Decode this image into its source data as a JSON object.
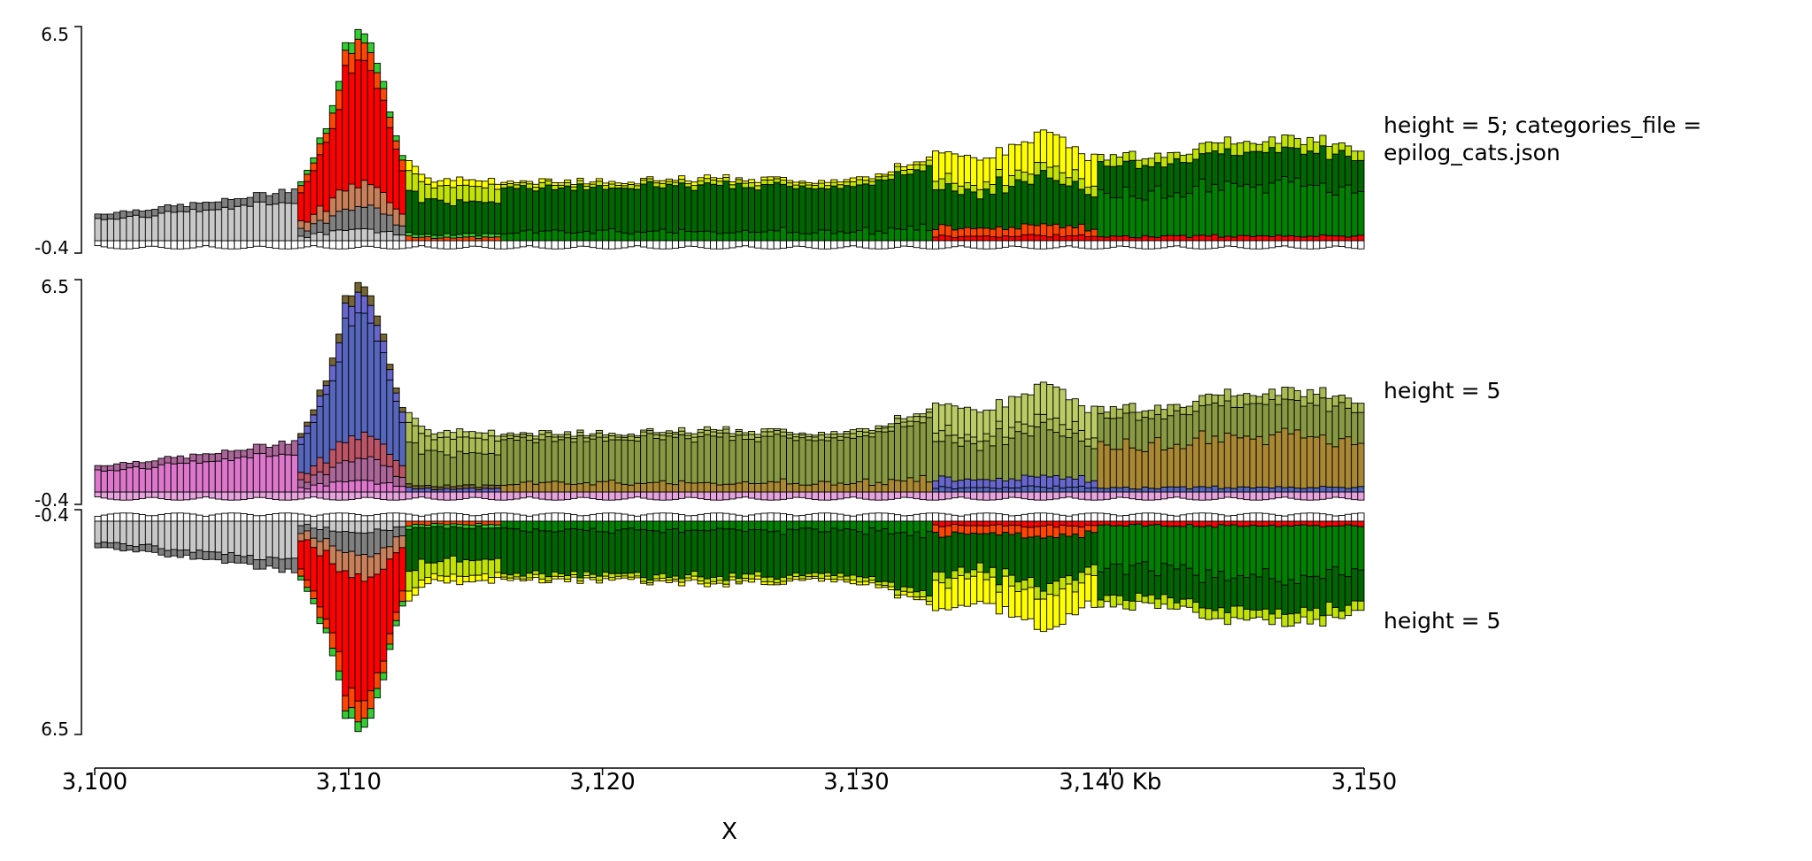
{
  "figure": {
    "xlabel": "X",
    "xlim_kb": [
      3100,
      3150
    ],
    "x_ticks": [
      {
        "value": 3100,
        "label": "3,100"
      },
      {
        "value": 3110,
        "label": "3,110"
      },
      {
        "value": 3120,
        "label": "3,120"
      },
      {
        "value": 3130,
        "label": "3,130"
      },
      {
        "value": 3140,
        "label": "3,140 Kb"
      },
      {
        "value": 3150,
        "label": "3,150"
      }
    ]
  },
  "tracks": [
    {
      "title_lines": [
        "height = 5; categories_file =",
        "epilog_cats.json"
      ],
      "ymin_label": "-0.4",
      "ymax_label": "6.5",
      "palette": "epilog",
      "inverted": false
    },
    {
      "title_lines": [
        "height = 5"
      ],
      "ymin_label": "-0.4",
      "ymax_label": "6.5",
      "palette": "default",
      "inverted": false
    },
    {
      "title_lines": [
        "height = 5"
      ],
      "ymin_label": "-0.4",
      "ymax_label": "6.5",
      "palette": "epilog",
      "inverted": true
    }
  ],
  "colors": {
    "epilog": [
      "#c8c8c8",
      "#808080",
      "#c8805a",
      "#ff0000",
      "#ff4500",
      "#32cd32",
      "#008000",
      "#006400",
      "#c2e105",
      "#ffff00"
    ],
    "default": [
      "#dd77cc",
      "#aa6699",
      "#bb5566",
      "#5566bb",
      "#6666cc",
      "#776633",
      "#aa8833",
      "#889944",
      "#aabb55",
      "#bbcc66"
    ]
  },
  "chart_data": {
    "type": "area",
    "xlabel": "X",
    "xlim": [
      3100,
      3150
    ],
    "ylim": [
      -0.4,
      6.5
    ],
    "series": [
      {
        "name": "",
        "x": [
          3100,
          3105,
          3108,
          3109,
          3110,
          3111,
          3112,
          3113,
          3115,
          3120,
          3125,
          3130,
          3133,
          3135,
          3137,
          3138,
          3139,
          3142,
          3145,
          3148,
          3150
        ],
        "values": [
          0.8,
          1.2,
          1.6,
          3.2,
          6.3,
          5.8,
          2.8,
          1.9,
          1.8,
          1.8,
          1.9,
          1.8,
          2.6,
          2.5,
          3.1,
          3.3,
          2.5,
          2.6,
          3.1,
          3.1,
          2.7
        ]
      }
    ]
  }
}
